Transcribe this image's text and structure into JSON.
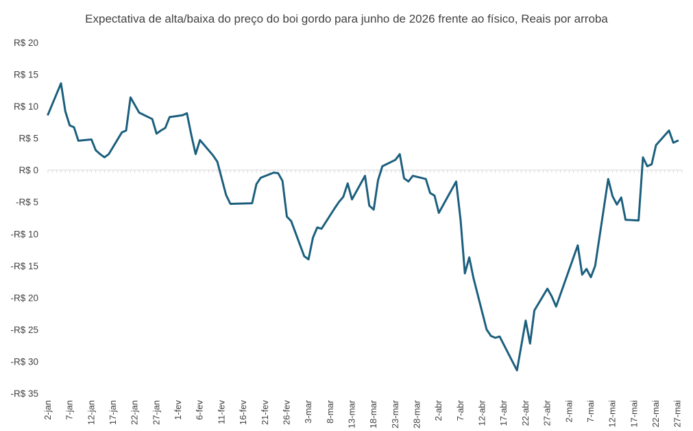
{
  "chart_data": {
    "type": "line",
    "title": "Expectativa de alta/baixa do preço do boi gordo para junho de 2026 frente ao físico, Reais por arroba",
    "xlabel": "",
    "ylabel": "",
    "ylim": [
      -35,
      20
    ],
    "y_ticks": [
      20,
      15,
      10,
      5,
      0,
      -5,
      -10,
      -15,
      -20,
      -25,
      -30,
      -35
    ],
    "y_tick_labels": [
      "R$ 20",
      "R$ 15",
      "R$ 10",
      "R$ 5",
      "R$ 0",
      "-R$ 5",
      "-R$ 10",
      "-R$ 15",
      "-R$ 20",
      "-R$ 25",
      "-R$ 30",
      "-R$ 35"
    ],
    "x_ticks": [
      "2026-01-02",
      "2026-01-07",
      "2026-01-12",
      "2026-01-17",
      "2026-01-22",
      "2026-01-27",
      "2026-02-01",
      "2026-02-06",
      "2026-02-11",
      "2026-02-16",
      "2026-02-21",
      "2026-02-26",
      "2026-03-03",
      "2026-03-08",
      "2026-03-13",
      "2026-03-18",
      "2026-03-23",
      "2026-03-28",
      "2026-04-02",
      "2026-04-07",
      "2026-04-12",
      "2026-04-17",
      "2026-04-22",
      "2026-04-27",
      "2026-05-02",
      "2026-05-07",
      "2026-05-12",
      "2026-05-17",
      "2026-05-22",
      "2026-05-27"
    ],
    "x_tick_labels": [
      "2-jan",
      "7-jan",
      "12-jan",
      "17-jan",
      "22-jan",
      "27-jan",
      "1-fev",
      "6-fev",
      "11-fev",
      "16-fev",
      "21-fev",
      "26-fev",
      "3-mar",
      "8-mar",
      "13-mar",
      "18-mar",
      "23-mar",
      "28-mar",
      "2-abr",
      "7-abr",
      "12-abr",
      "17-abr",
      "22-abr",
      "27-abr",
      "2-mai",
      "7-mai",
      "12-mai",
      "17-mai",
      "22-mai",
      "27-mai"
    ],
    "xlim": [
      "2026-01-02",
      "2026-05-28"
    ],
    "grid": false,
    "color": "#1b5f7d",
    "series": [
      {
        "name": "",
        "x": [
          "2026-01-02",
          "2026-01-05",
          "2026-01-06",
          "2026-01-07",
          "2026-01-08",
          "2026-01-09",
          "2026-01-12",
          "2026-01-13",
          "2026-01-14",
          "2026-01-15",
          "2026-01-16",
          "2026-01-19",
          "2026-01-20",
          "2026-01-21",
          "2026-01-22",
          "2026-01-23",
          "2026-01-26",
          "2026-01-27",
          "2026-01-28",
          "2026-01-29",
          "2026-01-30",
          "2026-02-02",
          "2026-02-03",
          "2026-02-04",
          "2026-02-05",
          "2026-02-06",
          "2026-02-09",
          "2026-02-10",
          "2026-02-11",
          "2026-02-12",
          "2026-02-13",
          "2026-02-18",
          "2026-02-19",
          "2026-02-20",
          "2026-02-23",
          "2026-02-24",
          "2026-02-25",
          "2026-02-26",
          "2026-02-27",
          "2026-03-02",
          "2026-03-03",
          "2026-03-04",
          "2026-03-05",
          "2026-03-06",
          "2026-03-09",
          "2026-03-10",
          "2026-03-11",
          "2026-03-12",
          "2026-03-13",
          "2026-03-16",
          "2026-03-17",
          "2026-03-18",
          "2026-03-19",
          "2026-03-20",
          "2026-03-23",
          "2026-03-24",
          "2026-03-25",
          "2026-03-26",
          "2026-03-27",
          "2026-03-30",
          "2026-03-31",
          "2026-04-01",
          "2026-04-02",
          "2026-04-06",
          "2026-04-07",
          "2026-04-08",
          "2026-04-09",
          "2026-04-10",
          "2026-04-13",
          "2026-04-14",
          "2026-04-15",
          "2026-04-16",
          "2026-04-20",
          "2026-04-22",
          "2026-04-23",
          "2026-04-24",
          "2026-04-27",
          "2026-04-28",
          "2026-04-29",
          "2026-05-04",
          "2026-05-05",
          "2026-05-06",
          "2026-05-07",
          "2026-05-08",
          "2026-05-11",
          "2026-05-12",
          "2026-05-13",
          "2026-05-14",
          "2026-05-15",
          "2026-05-18",
          "2026-05-19",
          "2026-05-20",
          "2026-05-21",
          "2026-05-22",
          "2026-05-25",
          "2026-05-26",
          "2026-05-27"
        ],
        "values": [
          8.7,
          13.6,
          9.2,
          7.0,
          6.7,
          4.6,
          4.8,
          3.1,
          2.5,
          2.0,
          2.5,
          5.9,
          6.2,
          11.4,
          10.2,
          9.0,
          8.0,
          5.7,
          6.2,
          6.6,
          8.3,
          8.6,
          8.9,
          5.5,
          2.5,
          4.7,
          2.3,
          1.3,
          -1.3,
          -3.9,
          -5.3,
          -5.2,
          -2.2,
          -1.2,
          -0.4,
          -0.5,
          -1.7,
          -7.3,
          -8.0,
          -13.5,
          -14.0,
          -10.6,
          -9.0,
          -9.2,
          -6.0,
          -5.0,
          -4.2,
          -2.1,
          -4.6,
          -0.9,
          -5.6,
          -6.2,
          -1.6,
          0.6,
          1.6,
          2.5,
          -1.3,
          -1.8,
          -0.9,
          -1.4,
          -3.6,
          -4.0,
          -6.7,
          -1.8,
          -7.8,
          -16.2,
          -13.7,
          -17.0,
          -25.0,
          -26.0,
          -26.3,
          -26.1,
          -31.4,
          -23.6,
          -27.2,
          -22.0,
          -18.6,
          -19.8,
          -21.4,
          -11.8,
          -16.4,
          -15.5,
          -16.8,
          -15.0,
          -1.4,
          -4.1,
          -5.4,
          -4.3,
          -7.8,
          -7.9,
          2.0,
          0.6,
          0.9,
          3.9,
          6.2,
          4.3,
          4.6
        ]
      }
    ]
  }
}
